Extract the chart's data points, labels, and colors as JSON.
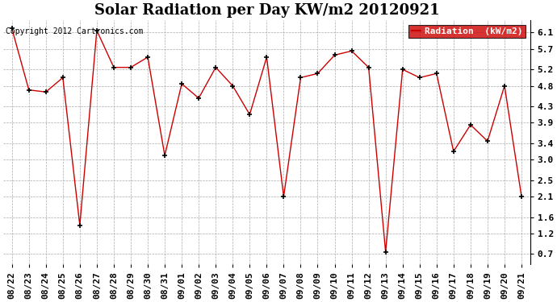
{
  "title": "Solar Radiation per Day KW/m2 20120921",
  "copyright_text": "Copyright 2012 Cartronics.com",
  "legend_label": "Radiation  (kW/m2)",
  "x_labels": [
    "08/22",
    "08/23",
    "08/24",
    "08/25",
    "08/26",
    "08/27",
    "08/28",
    "08/29",
    "08/30",
    "08/31",
    "09/01",
    "09/02",
    "09/03",
    "09/04",
    "09/05",
    "09/06",
    "09/07",
    "09/08",
    "09/09",
    "09/10",
    "09/11",
    "09/12",
    "09/13",
    "09/14",
    "09/15",
    "09/16",
    "09/17",
    "09/18",
    "09/19",
    "09/20",
    "09/21"
  ],
  "y_values": [
    6.2,
    4.7,
    4.65,
    5.0,
    1.4,
    6.15,
    5.25,
    5.25,
    5.5,
    3.1,
    4.85,
    4.5,
    5.25,
    4.8,
    4.1,
    5.5,
    2.1,
    5.0,
    5.1,
    5.55,
    5.65,
    5.25,
    0.75,
    5.2,
    5.0,
    5.1,
    3.2,
    3.85,
    3.45,
    4.8,
    2.1
  ],
  "y_ticks": [
    0.7,
    1.2,
    1.6,
    2.1,
    2.5,
    3.0,
    3.4,
    3.9,
    4.3,
    4.8,
    5.2,
    5.7,
    6.1
  ],
  "ylim": [
    0.45,
    6.4
  ],
  "line_color": "#cc0000",
  "marker_color": "black",
  "bg_color": "#ffffff",
  "plot_bg_color": "#ffffff",
  "legend_bg": "#cc0000",
  "legend_text_color": "white",
  "title_fontsize": 13,
  "copyright_fontsize": 7,
  "tick_fontsize": 8
}
